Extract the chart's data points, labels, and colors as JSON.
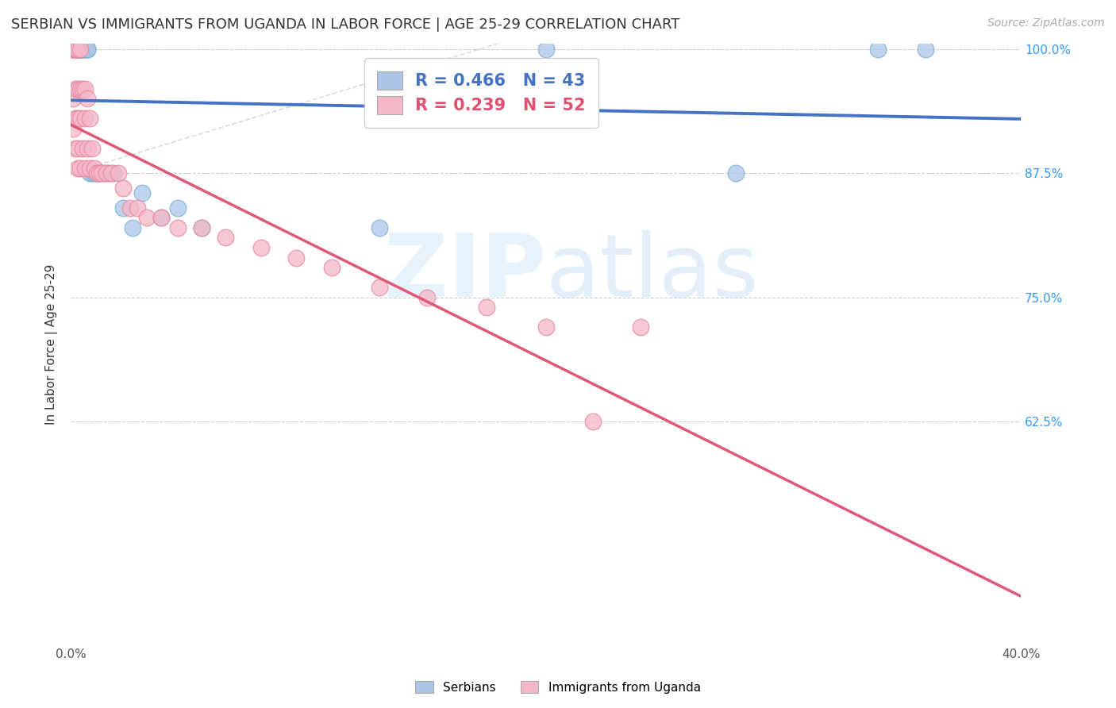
{
  "title": "SERBIAN VS IMMIGRANTS FROM UGANDA IN LABOR FORCE | AGE 25-29 CORRELATION CHART",
  "source": "Source: ZipAtlas.com",
  "ylabel": "In Labor Force | Age 25-29",
  "xlim": [
    0.0,
    0.4
  ],
  "ylim": [
    0.4,
    1.005
  ],
  "xticks": [
    0.0,
    0.05,
    0.1,
    0.15,
    0.2,
    0.25,
    0.3,
    0.35,
    0.4
  ],
  "xtick_labels": [
    "0.0%",
    "",
    "",
    "",
    "",
    "",
    "",
    "",
    "40.0%"
  ],
  "ytick_positions": [
    0.625,
    0.75,
    0.875,
    1.0
  ],
  "ytick_labels": [
    "62.5%",
    "75.0%",
    "87.5%",
    "100.0%"
  ],
  "grid_color": "#cccccc",
  "background_color": "#ffffff",
  "blue_color": "#adc6e8",
  "blue_edge_color": "#7bafd4",
  "blue_line_color": "#4472c4",
  "pink_color": "#f5b8c8",
  "pink_edge_color": "#e888a0",
  "pink_line_color": "#e05878",
  "pink_dash_color": "#e8a0b0",
  "legend_blue_label": "R = 0.466   N = 43",
  "legend_pink_label": "R = 0.239   N = 52",
  "serbians_label": "Serbians",
  "uganda_label": "Immigrants from Uganda",
  "blue_x": [
    0.001,
    0.001,
    0.001,
    0.002,
    0.002,
    0.002,
    0.002,
    0.002,
    0.003,
    0.003,
    0.003,
    0.003,
    0.004,
    0.004,
    0.004,
    0.004,
    0.005,
    0.005,
    0.005,
    0.006,
    0.006,
    0.006,
    0.007,
    0.007,
    0.008,
    0.009,
    0.01,
    0.011,
    0.012,
    0.014,
    0.016,
    0.018,
    0.022,
    0.026,
    0.03,
    0.038,
    0.045,
    0.055,
    0.13,
    0.2,
    0.28,
    0.34,
    0.36
  ],
  "blue_y": [
    1.0,
    1.0,
    1.0,
    1.0,
    1.0,
    1.0,
    1.0,
    1.0,
    1.0,
    1.0,
    1.0,
    1.0,
    1.0,
    1.0,
    1.0,
    1.0,
    1.0,
    1.0,
    1.0,
    1.0,
    1.0,
    1.0,
    1.0,
    1.0,
    0.875,
    0.875,
    0.875,
    0.875,
    0.875,
    0.875,
    0.875,
    0.875,
    0.84,
    0.82,
    0.855,
    0.83,
    0.84,
    0.82,
    0.82,
    1.0,
    0.875,
    1.0,
    1.0
  ],
  "pink_x": [
    0.001,
    0.001,
    0.001,
    0.001,
    0.002,
    0.002,
    0.002,
    0.002,
    0.002,
    0.003,
    0.003,
    0.003,
    0.003,
    0.003,
    0.004,
    0.004,
    0.004,
    0.004,
    0.005,
    0.005,
    0.006,
    0.006,
    0.006,
    0.007,
    0.007,
    0.008,
    0.008,
    0.009,
    0.01,
    0.011,
    0.012,
    0.013,
    0.015,
    0.017,
    0.02,
    0.022,
    0.025,
    0.028,
    0.032,
    0.038,
    0.045,
    0.055,
    0.065,
    0.08,
    0.095,
    0.11,
    0.13,
    0.15,
    0.175,
    0.2,
    0.22,
    0.24
  ],
  "pink_y": [
    1.0,
    1.0,
    0.95,
    0.92,
    1.0,
    1.0,
    0.96,
    0.93,
    0.9,
    1.0,
    0.96,
    0.93,
    0.9,
    0.88,
    1.0,
    0.96,
    0.93,
    0.88,
    0.96,
    0.9,
    0.96,
    0.93,
    0.88,
    0.95,
    0.9,
    0.93,
    0.88,
    0.9,
    0.88,
    0.875,
    0.875,
    0.875,
    0.875,
    0.875,
    0.875,
    0.86,
    0.84,
    0.84,
    0.83,
    0.83,
    0.82,
    0.82,
    0.81,
    0.8,
    0.79,
    0.78,
    0.76,
    0.75,
    0.74,
    0.72,
    0.625,
    0.72
  ]
}
